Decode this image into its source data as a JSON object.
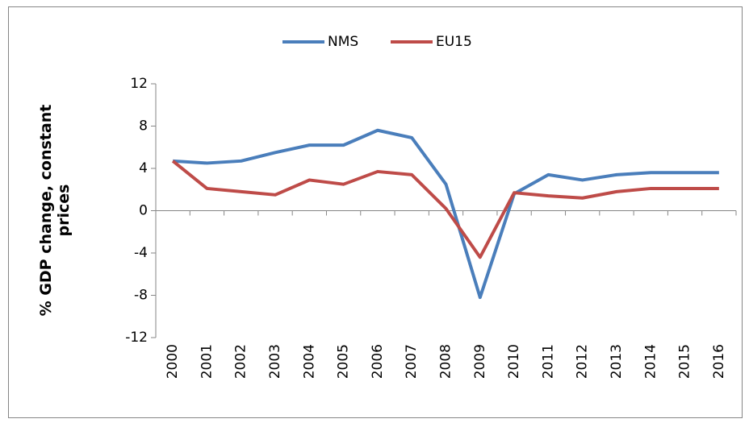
{
  "chart_data": {
    "type": "line",
    "y_label": "% GDP change, constant prices",
    "categories": [
      "2000",
      "2001",
      "2002",
      "2003",
      "2004",
      "2005",
      "2006",
      "2007",
      "2008",
      "2009",
      "2010",
      "2011",
      "2012",
      "2013",
      "2014",
      "2015",
      "2016"
    ],
    "series": [
      {
        "name": "NMS",
        "color": "#4a7ebb",
        "values": [
          4.7,
          4.5,
          4.7,
          5.5,
          6.2,
          6.2,
          7.6,
          6.9,
          2.5,
          -8.2,
          1.6,
          3.4,
          2.9,
          3.4,
          3.6,
          3.6,
          3.6
        ]
      },
      {
        "name": "EU15",
        "color": "#be4b48",
        "values": [
          4.7,
          2.1,
          1.8,
          1.5,
          2.9,
          2.5,
          3.7,
          3.4,
          0.2,
          -4.4,
          1.7,
          1.4,
          1.2,
          1.8,
          2.1,
          2.1,
          2.1
        ]
      }
    ],
    "ylim": [
      -12,
      12
    ],
    "yticks": [
      -12,
      -8,
      -4,
      0,
      4,
      8,
      12
    ],
    "grid": false,
    "legend": "top"
  }
}
